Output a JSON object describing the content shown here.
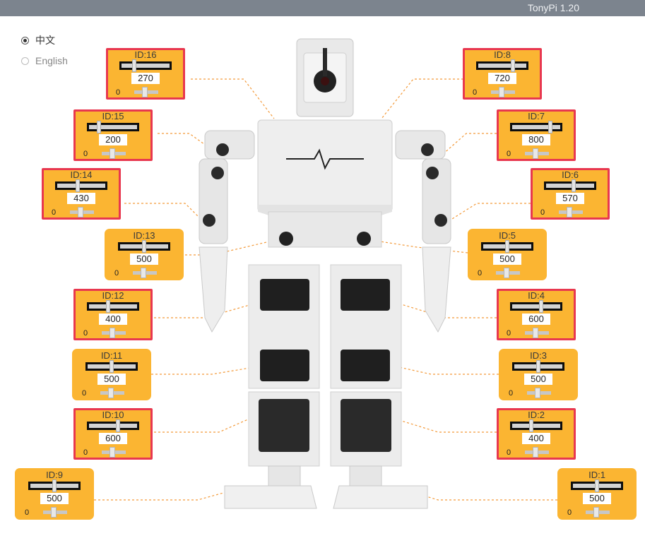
{
  "window": {
    "title": "TonyPi 1.20"
  },
  "language": {
    "options": [
      {
        "label": "中文",
        "selected": true
      },
      {
        "label": "English",
        "selected": false
      }
    ]
  },
  "slider_min": "0",
  "servos": [
    {
      "id_label": "ID:16",
      "value": "270",
      "selected": true
    },
    {
      "id_label": "ID:15",
      "value": "200",
      "selected": true
    },
    {
      "id_label": "ID:14",
      "value": "430",
      "selected": true
    },
    {
      "id_label": "ID:13",
      "value": "500",
      "selected": false
    },
    {
      "id_label": "ID:12",
      "value": "400",
      "selected": true
    },
    {
      "id_label": "ID:11",
      "value": "500",
      "selected": false
    },
    {
      "id_label": "ID:10",
      "value": "600",
      "selected": true
    },
    {
      "id_label": "ID:9",
      "value": "500",
      "selected": false
    },
    {
      "id_label": "ID:8",
      "value": "720",
      "selected": true
    },
    {
      "id_label": "ID:7",
      "value": "800",
      "selected": true
    },
    {
      "id_label": "ID:6",
      "value": "570",
      "selected": true
    },
    {
      "id_label": "ID:5",
      "value": "500",
      "selected": false
    },
    {
      "id_label": "ID:4",
      "value": "600",
      "selected": true
    },
    {
      "id_label": "ID:3",
      "value": "500",
      "selected": false
    },
    {
      "id_label": "ID:2",
      "value": "400",
      "selected": true
    },
    {
      "id_label": "ID:1",
      "value": "500",
      "selected": false
    }
  ],
  "colors": {
    "panel": "#fbb532",
    "selected_border": "#e8384f",
    "titlebar": "#7c848e",
    "leader_line": "#f39a3a"
  }
}
